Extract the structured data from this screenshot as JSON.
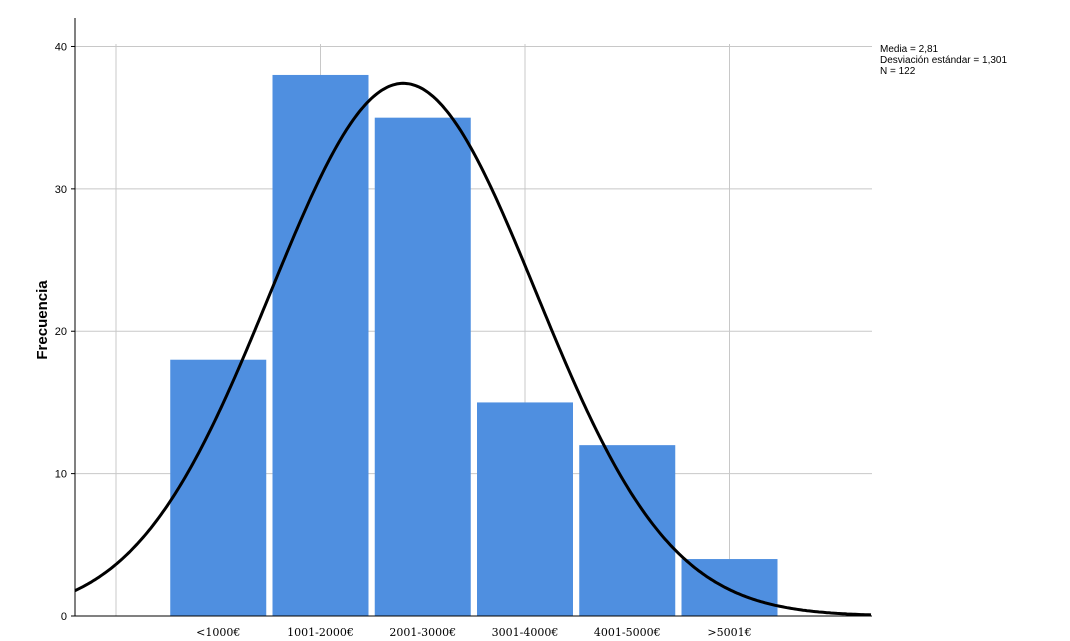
{
  "chart_data": {
    "type": "bar",
    "title": "",
    "xlabel": "",
    "ylabel": "Frecuencia",
    "categories": [
      "<1000€",
      "1001-2000€",
      "2001-3000€",
      "3001-4000€",
      "4001-5000€",
      ">5001€"
    ],
    "values": [
      18,
      38,
      35,
      15,
      12,
      4
    ],
    "ylim": [
      0,
      42
    ],
    "yticks": [
      "0",
      "10",
      "20",
      "30",
      "40"
    ],
    "grid": true,
    "normal_curve": {
      "mean": 2.81,
      "sd": 1.301,
      "n": 122
    },
    "colors": {
      "bar": "#4f8fe0",
      "curve": "#000000",
      "grid": "#c8c8c8"
    },
    "stats_box": {
      "position": "top-right",
      "lines": [
        "Media = 2,81",
        "Desviación estándar = 1,301",
        "N = 122"
      ]
    }
  }
}
